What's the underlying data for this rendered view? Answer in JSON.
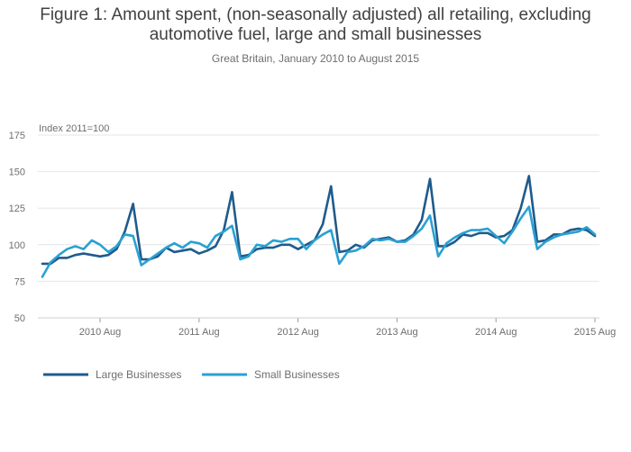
{
  "chart_data": {
    "type": "line",
    "title": "Figure 1: Amount spent, (non-seasonally adjusted) all retailing, excluding automotive fuel, large and small businesses",
    "subtitle": "Great Britain, January 2010 to August 2015",
    "unit_label": "Index 2011=100",
    "xlabel": "",
    "ylabel": "",
    "ylim": [
      50,
      175
    ],
    "yticks": [
      "50",
      "75",
      "100",
      "125",
      "150",
      "175"
    ],
    "xticks": [
      {
        "label": "2010 Aug",
        "index": 7
      },
      {
        "label": "2011 Aug",
        "index": 19
      },
      {
        "label": "2012 Aug",
        "index": 31
      },
      {
        "label": "2013 Aug",
        "index": 43
      },
      {
        "label": "2014 Aug",
        "index": 55
      },
      {
        "label": "2015 Aug",
        "index": 67
      }
    ],
    "x_start": "2010 Jan",
    "x_end": "2015 Aug",
    "grid": true,
    "legend_position": "bottom-left",
    "series": [
      {
        "name": "Large Businesses",
        "color": "#1f5b8c",
        "values": [
          87,
          87,
          91,
          91,
          93,
          94,
          93,
          92,
          93,
          97,
          109,
          128,
          90,
          90,
          92,
          98,
          95,
          96,
          97,
          94,
          96,
          99,
          110,
          136,
          92,
          93,
          97,
          98,
          98,
          100,
          100,
          97,
          100,
          103,
          114,
          140,
          95,
          96,
          100,
          98,
          103,
          104,
          105,
          102,
          103,
          107,
          117,
          145,
          99,
          99,
          102,
          107,
          106,
          108,
          108,
          105,
          106,
          110,
          125,
          147,
          102,
          103,
          107,
          107,
          110,
          111,
          110,
          106
        ]
      },
      {
        "name": "Small Businesses",
        "color": "#2aa1d2",
        "values": [
          78,
          88,
          93,
          97,
          99,
          97,
          103,
          100,
          95,
          99,
          107,
          106,
          86,
          90,
          94,
          98,
          101,
          98,
          102,
          101,
          98,
          106,
          109,
          113,
          90,
          92,
          100,
          99,
          103,
          102,
          104,
          104,
          97,
          103,
          107,
          110,
          87,
          95,
          96,
          99,
          104,
          103,
          104,
          102,
          102,
          106,
          111,
          120,
          92,
          101,
          105,
          108,
          110,
          110,
          111,
          106,
          101,
          109,
          118,
          126,
          97,
          102,
          105,
          107,
          108,
          109,
          112,
          107
        ]
      }
    ]
  }
}
